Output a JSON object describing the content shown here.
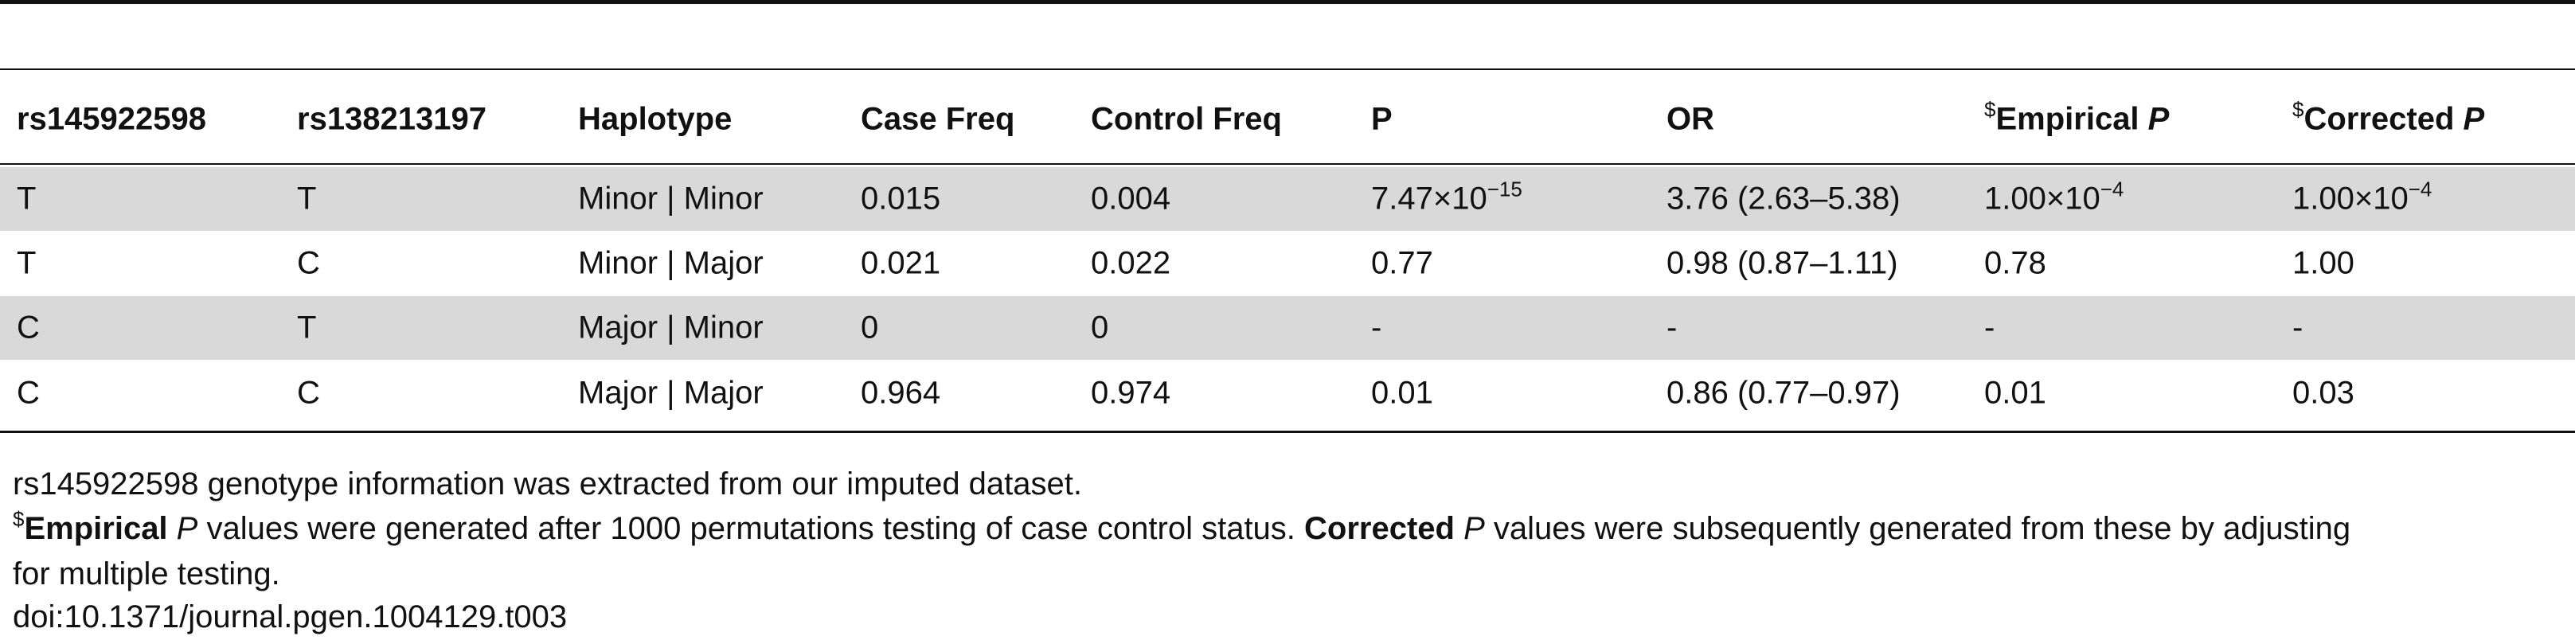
{
  "table": {
    "header": [
      "rs145922598",
      "rs138213197",
      "Haplotype",
      "Case Freq",
      "Control Freq",
      "P",
      "OR",
      {
        "sup": "$",
        "bold": "Empirical ",
        "italic": "P"
      },
      {
        "sup": "$",
        "bold": "Corrected ",
        "italic": "P"
      }
    ],
    "rows": [
      [
        "T",
        "T",
        "Minor | Minor",
        "0.015",
        "0.004",
        {
          "base": "7.47×10",
          "exp": "−15"
        },
        "3.76 (2.63–5.38)",
        {
          "base": "1.00×10",
          "exp": "−4"
        },
        {
          "base": "1.00×10",
          "exp": "−4"
        }
      ],
      [
        "T",
        "C",
        "Minor | Major",
        "0.021",
        "0.022",
        "0.77",
        "0.98 (0.87–1.11)",
        "0.78",
        "1.00"
      ],
      [
        "C",
        "T",
        "Major | Minor",
        "0",
        "0",
        "-",
        "-",
        "-",
        "-"
      ],
      [
        "C",
        "C",
        "Major | Major",
        "0.964",
        "0.974",
        "0.01",
        "0.86 (0.77–0.97)",
        "0.01",
        "0.03"
      ]
    ]
  },
  "footnotes": {
    "note1": "rs145922598 genotype information was extracted from our imputed dataset.",
    "note2": [
      {
        "sup": "$"
      },
      {
        "bold": "Empirical"
      },
      {
        "italic": " P"
      },
      {
        "text": " values were generated after 1000 permutations testing of case control status. "
      },
      {
        "bold": "Corrected"
      },
      {
        "italic": " P"
      },
      {
        "text": " values were subsequently generated from these by adjusting"
      },
      {
        "text": "for multiple testing."
      }
    ],
    "doi": "doi:10.1371/journal.pgen.1004129.t003"
  }
}
